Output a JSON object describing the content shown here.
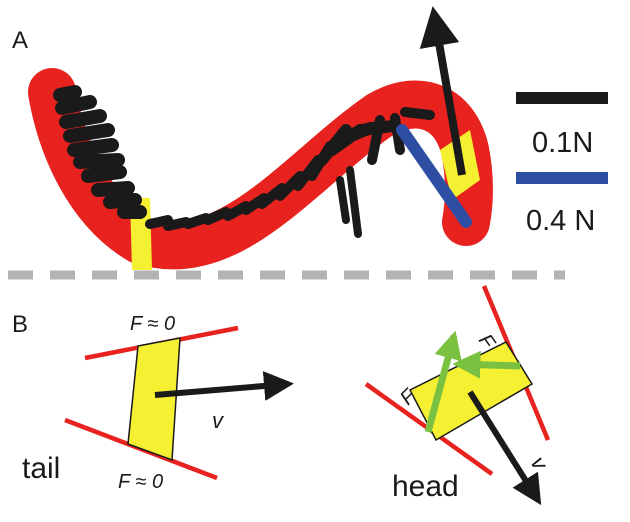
{
  "panels": {
    "a": "A",
    "b": "B"
  },
  "scale_bars": [
    {
      "label": "0.1N",
      "color": "#1a1a1a"
    },
    {
      "label": "0.4 N",
      "color": "#2d4ea3"
    }
  ],
  "tail": {
    "label": "tail",
    "top_force": "F ≈ 0",
    "bottom_force": "F ≈ 0",
    "velocity": "v"
  },
  "head": {
    "label": "head",
    "force_left": "F",
    "force_right": "F",
    "velocity": "v"
  },
  "colors": {
    "body": "#e8221e",
    "segment": "#f5f032",
    "force_arrow": "#1a1a1a",
    "head_force": "#7ac142",
    "scale_blue": "#2d4ea3",
    "divider": "#b3b3b3"
  }
}
